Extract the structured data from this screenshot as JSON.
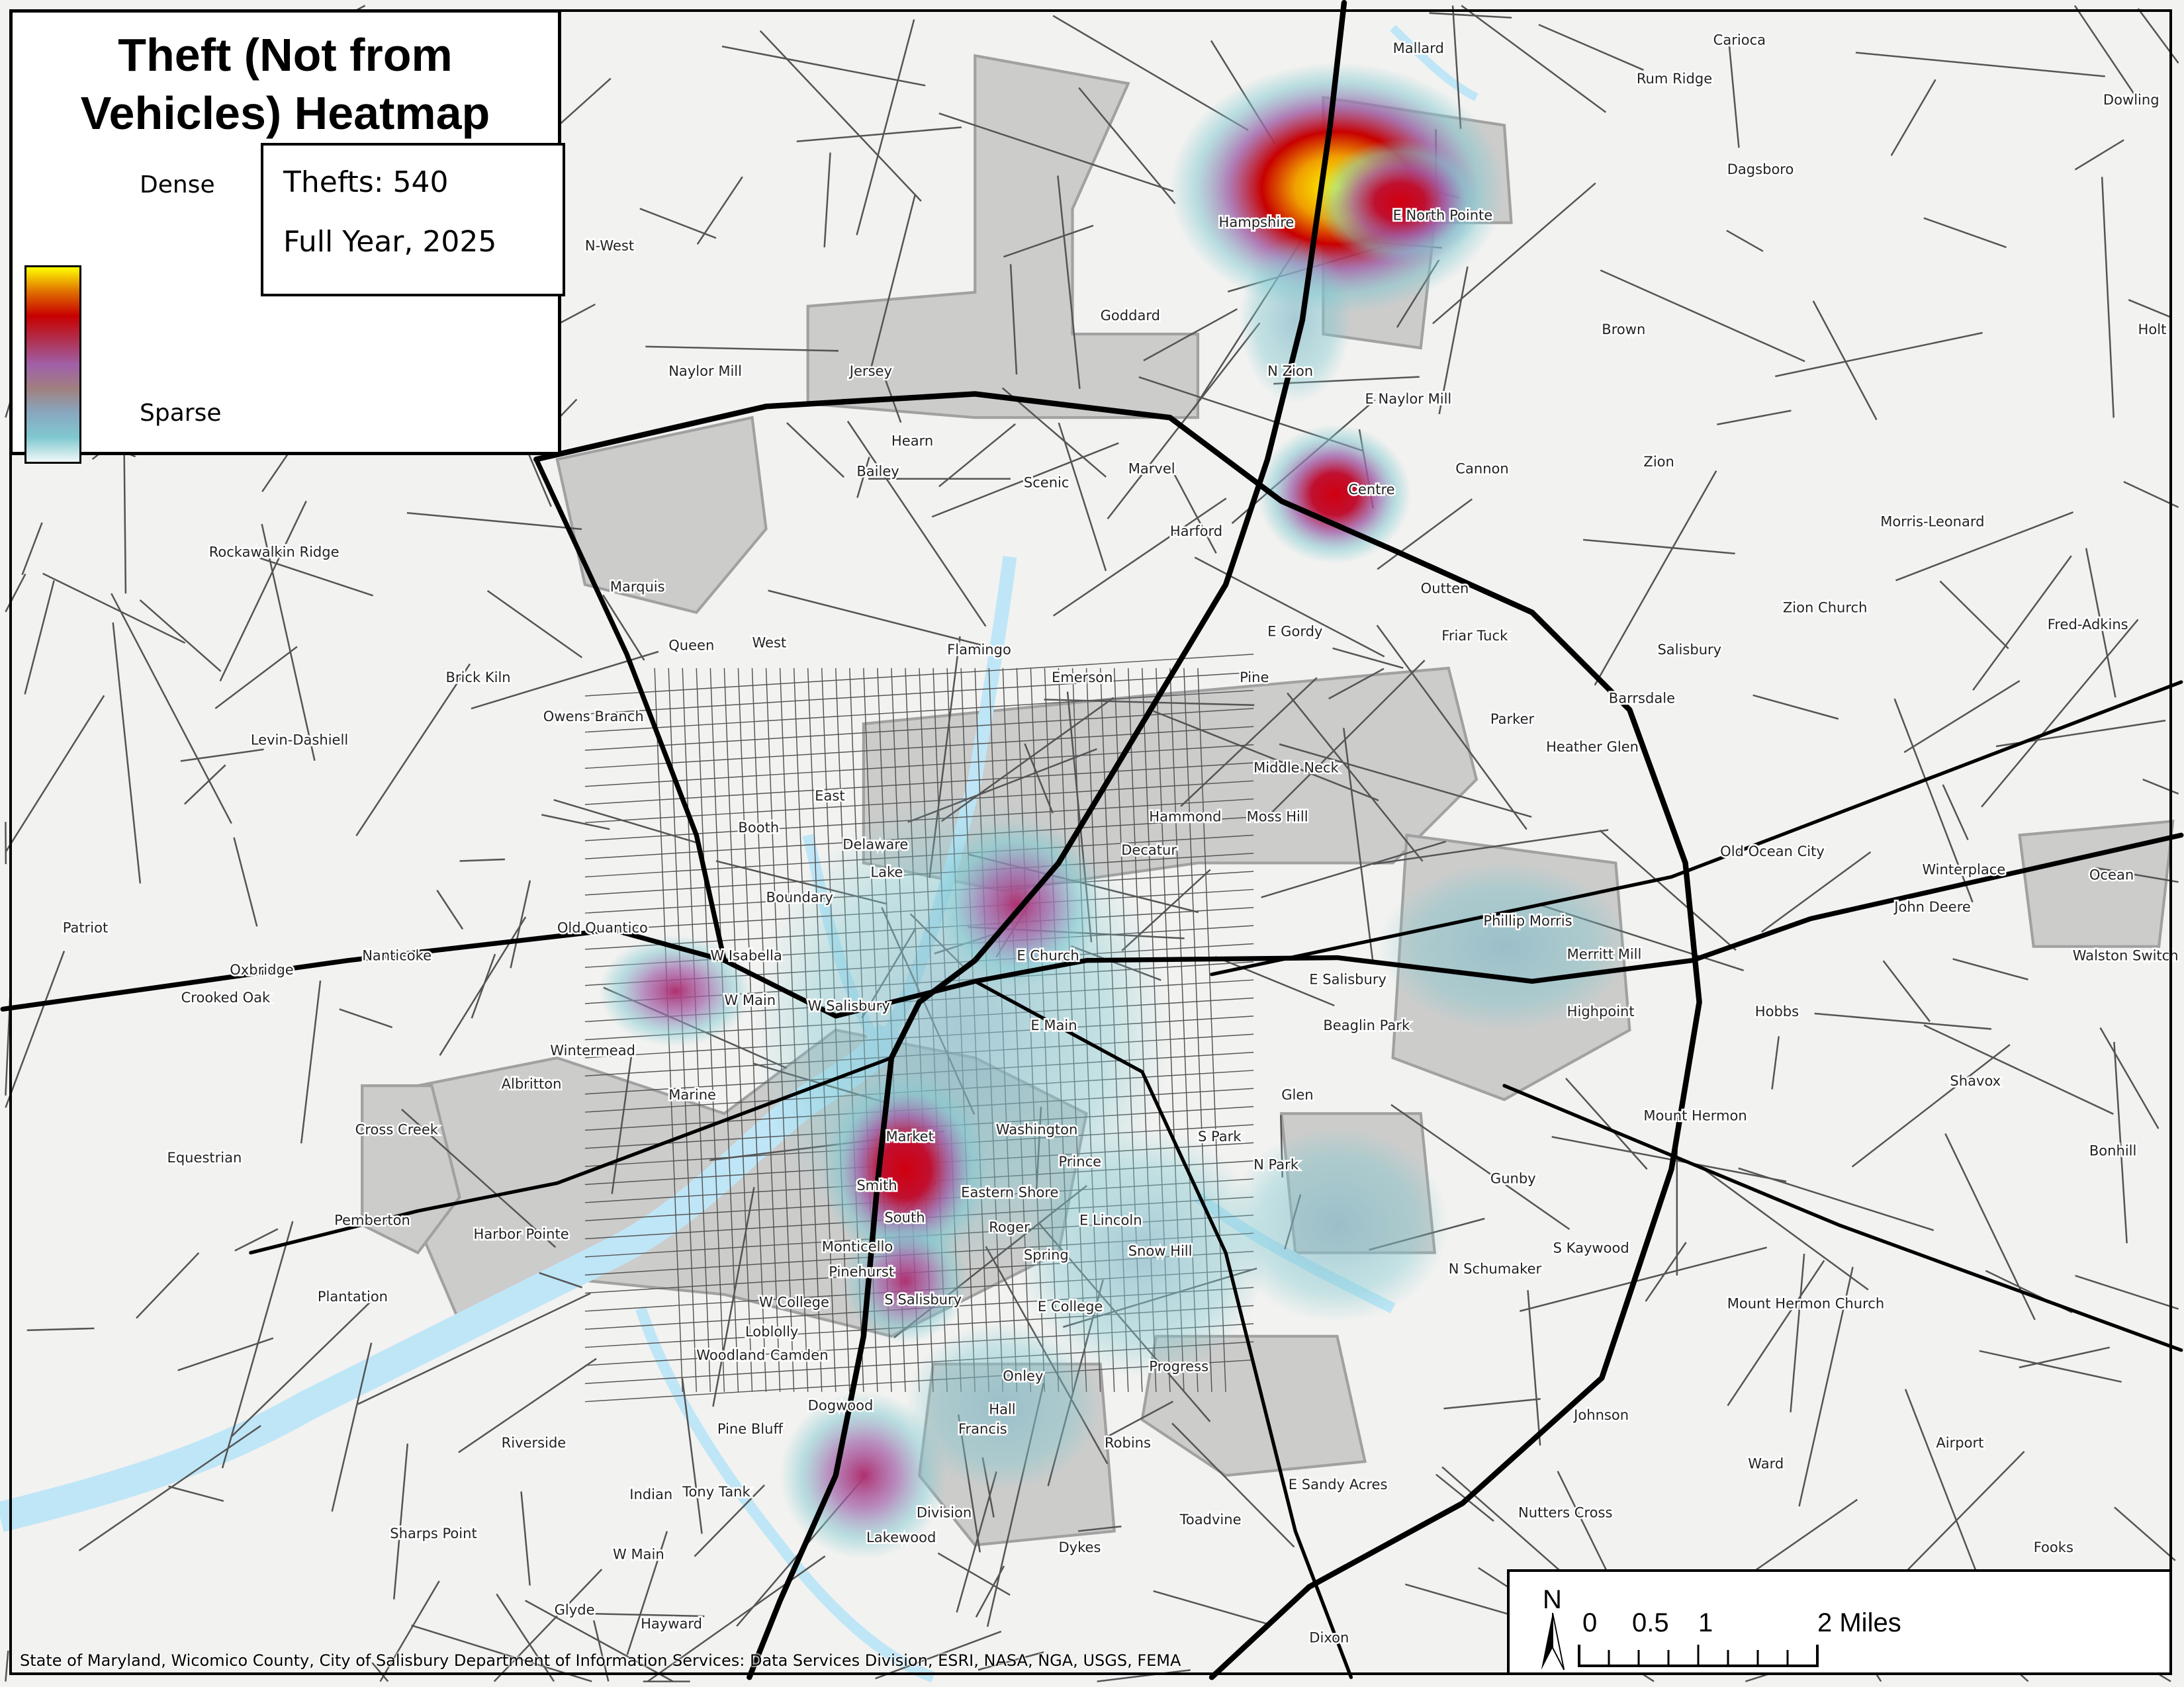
{
  "legend": {
    "title": "Theft (Not from Vehicles) Heatmap",
    "dense_label": "Dense",
    "sparse_label": "Sparse",
    "ramp_colors": [
      "#ffff00",
      "#e07000",
      "#c80000",
      "#b03050",
      "#a060a8",
      "#a08080",
      "#88a8c0",
      "#80c8d0",
      "#f0f8f8"
    ]
  },
  "info": {
    "count_text": "Thefts: 540",
    "period_text": "Full Year, 2025"
  },
  "scalebar": {
    "north": "N",
    "ticks": [
      "0",
      "0.5",
      "1",
      "2 Miles"
    ]
  },
  "attribution": "State of Maryland, Wicomico County, City of Salisbury Department of Information Services: Data Services Division, ESRI, NASA, NGA, USGS, FEMA",
  "colors": {
    "water": "#bfe6f7",
    "city": "#c8c8c8",
    "land": "#f2f2f0",
    "road_major": "#000000",
    "road_minor": "#555555"
  },
  "streets": [
    "Mallard",
    "Rum Ridge",
    "Carioca",
    "Dowling",
    "Dagsboro",
    "Hampshire",
    "E North Pointe",
    "N-West",
    "Goddard",
    "Jersey",
    "Naylor Mill",
    "Hearn",
    "Bailey",
    "N Zion",
    "E Naylor Mill",
    "Brown",
    "Holt",
    "Zion",
    "Cannon",
    "Centre",
    "Marvel",
    "Scenic",
    "Harford",
    "Morris-Leonard",
    "Outten",
    "Friar Tuck",
    "E Gordy",
    "Zion Church",
    "Fred-Adkins",
    "Marquis",
    "Queen",
    "West",
    "Flamingo",
    "Emerson",
    "Pine",
    "Middle Neck",
    "Heather Glen",
    "Barrsdale",
    "Parker",
    "Salisbury",
    "Owens Branch",
    "Brick Kiln",
    "Levin-Dashiell",
    "Rockawalkin Ridge",
    "Booth",
    "East",
    "Delaware",
    "Lake",
    "Hammond",
    "Decatur",
    "Moss Hill",
    "Old Ocean City",
    "Winterplace",
    "John Deere",
    "Ocean",
    "Walston Switch",
    "Old Quantico",
    "Nanticoke",
    "W Isabella",
    "Boundary",
    "W Main",
    "W Salisbury",
    "E Church",
    "E Main",
    "E Salisbury",
    "Phillip Morris",
    "Merritt Mill",
    "Beaglin Park",
    "Highpoint",
    "Hobbs",
    "Shavox",
    "Mount Hermon",
    "Bonhill",
    "Wintermead",
    "Albritton",
    "Cross Creek",
    "Equestrian",
    "Oxbridge",
    "Crooked Oak",
    "Patriot",
    "Pemberton",
    "Harbor Pointe",
    "Plantation",
    "Marine",
    "Market",
    "Washington",
    "Smith",
    "South",
    "Monticello",
    "Pinehurst",
    "Eastern Shore",
    "Roger",
    "Prince",
    "E Lincoln",
    "S Park",
    "N Park",
    "Glen",
    "Gunby",
    "S Kaywood",
    "N Schumaker",
    "Mount Hermon Church",
    "W College",
    "E College",
    "Loblolly",
    "Woodland",
    "Camden",
    "S Salisbury",
    "Spring",
    "Snow Hill",
    "Onley",
    "Hall",
    "Francis",
    "Dogwood",
    "Pine Bluff",
    "Riverside",
    "Tony Tank",
    "Indian",
    "Division",
    "Lakewood",
    "Robins",
    "Toadvine",
    "Progress",
    "E Sandy Acres",
    "Johnson",
    "Nutters Cross",
    "Airport",
    "Ward",
    "Fooks",
    "Dykes",
    "Glyde",
    "Hayward",
    "Sharps Point",
    "Dixon",
    "W Main"
  ]
}
